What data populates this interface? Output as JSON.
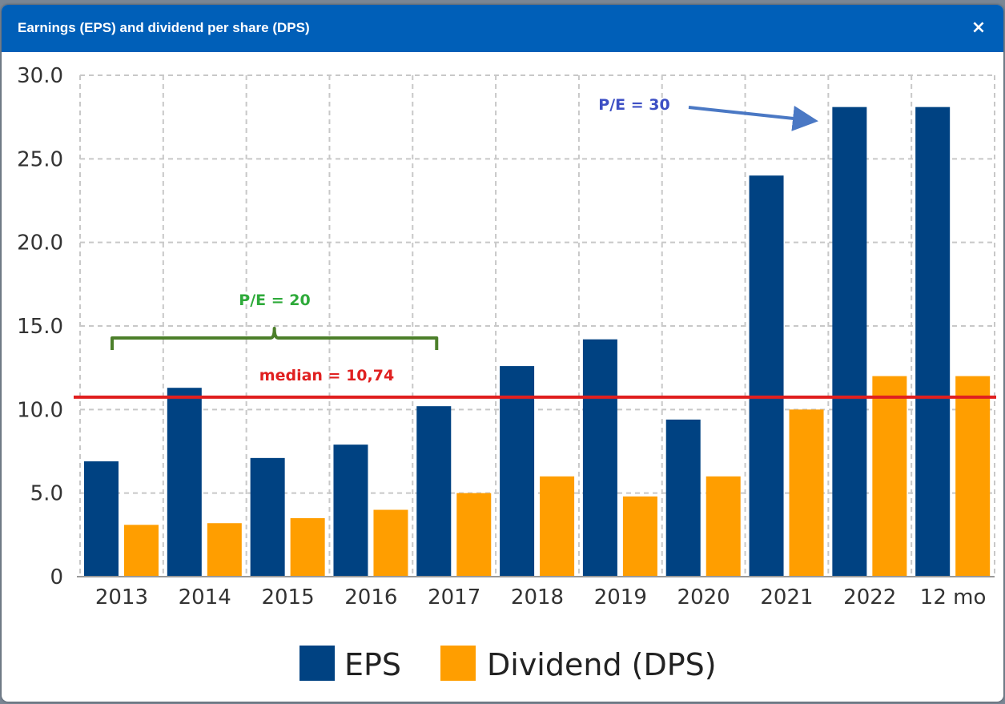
{
  "window": {
    "title": "Earnings (EPS) and dividend per share (DPS)",
    "close_label": "×",
    "header_color": "#005fb8"
  },
  "chart_data": {
    "type": "bar",
    "categories": [
      "2013",
      "2014",
      "2015",
      "2016",
      "2017",
      "2018",
      "2019",
      "2020",
      "2021",
      "2022",
      "12 mo"
    ],
    "series": [
      {
        "name": "EPS",
        "color": "#004282",
        "values": [
          6.9,
          11.3,
          7.1,
          7.9,
          10.2,
          12.6,
          14.2,
          9.4,
          24.0,
          28.1,
          28.1
        ]
      },
      {
        "name": "Dividend (DPS)",
        "color": "#ff9e00",
        "values": [
          3.1,
          3.2,
          3.5,
          4.0,
          5.0,
          6.0,
          4.8,
          6.0,
          10.0,
          12.0,
          12.0
        ]
      }
    ],
    "ylim": [
      0,
      30
    ],
    "yticks": [
      0,
      5,
      10,
      15,
      20,
      25,
      30
    ],
    "ytick_labels": [
      "0",
      "5.0",
      "10.0",
      "15.0",
      "20.0",
      "25.0",
      "30.0"
    ],
    "grid": true,
    "legend_position": "bottom",
    "median_line": {
      "value": 10.74,
      "label": "median = 10,74",
      "color": "#e02020"
    },
    "annotations": [
      {
        "label": "P/E = 20",
        "color": "#2eaa3a",
        "bracket_from": "2013",
        "bracket_to": "2017",
        "bracket_color": "#4c7f2a"
      },
      {
        "label": "P/E = 30",
        "color": "#3d4fc4",
        "points_to": "2022",
        "arrow_color": "#4a78c4"
      }
    ]
  }
}
